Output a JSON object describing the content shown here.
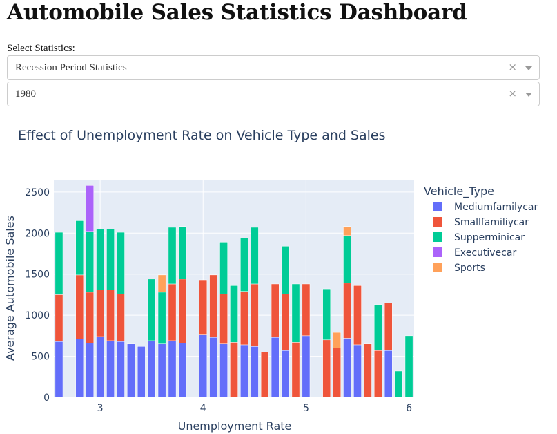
{
  "page": {
    "title": "Automobile Sales Statistics Dashboard",
    "select_label": "Select Statistics:",
    "dropdown_statistics": {
      "value": "Recession Period Statistics",
      "clear_glyph": "×"
    },
    "dropdown_year": {
      "value": "1980",
      "clear_glyph": "×"
    }
  },
  "colors": {
    "plot_background": "#E5ECF6",
    "gridline": "#ffffff",
    "text": "#2a3f5f"
  },
  "chart_data": {
    "type": "bar",
    "barmode": "stack",
    "title": "Effect of Unemployment Rate on Vehicle Type and Sales",
    "xlabel": "Unemployment Rate",
    "ylabel": "Average Automobile Sales",
    "xlim": [
      2.55,
      6.05
    ],
    "ylim": [
      0,
      2650
    ],
    "x_ticks": [
      3,
      4,
      5,
      6
    ],
    "y_ticks": [
      0,
      500,
      1000,
      1500,
      2000,
      2500
    ],
    "bar_width": 0.075,
    "grid": true,
    "legend": {
      "title": "Vehicle_Type",
      "placement": "right"
    },
    "series": [
      {
        "name": "Mediumfamilycar",
        "color": "#636EFA",
        "points": [
          [
            2.6,
            680
          ],
          [
            2.8,
            710
          ],
          [
            2.9,
            660
          ],
          [
            3.0,
            740
          ],
          [
            3.1,
            690
          ],
          [
            3.2,
            680
          ],
          [
            3.3,
            650
          ],
          [
            3.4,
            620
          ],
          [
            3.5,
            690
          ],
          [
            3.6,
            650
          ],
          [
            3.7,
            690
          ],
          [
            3.8,
            660
          ],
          [
            4.0,
            760
          ],
          [
            4.1,
            730
          ],
          [
            4.2,
            650
          ],
          [
            4.4,
            640
          ],
          [
            4.5,
            620
          ],
          [
            4.7,
            730
          ],
          [
            4.8,
            570
          ],
          [
            5.0,
            750
          ],
          [
            5.4,
            720
          ],
          [
            5.5,
            640
          ],
          [
            5.8,
            570
          ]
        ]
      },
      {
        "name": "Smallfamiliycar",
        "color": "#EF553B",
        "points": [
          [
            2.6,
            570
          ],
          [
            2.8,
            780
          ],
          [
            2.9,
            620
          ],
          [
            3.0,
            570
          ],
          [
            3.1,
            620
          ],
          [
            3.2,
            580
          ],
          [
            3.7,
            690
          ],
          [
            3.8,
            780
          ],
          [
            4.0,
            670
          ],
          [
            4.1,
            760
          ],
          [
            4.2,
            610
          ],
          [
            4.3,
            670
          ],
          [
            4.4,
            650
          ],
          [
            4.5,
            760
          ],
          [
            4.6,
            550
          ],
          [
            4.7,
            650
          ],
          [
            4.8,
            690
          ],
          [
            4.9,
            670
          ],
          [
            5.0,
            630
          ],
          [
            5.2,
            700
          ],
          [
            5.3,
            600
          ],
          [
            5.4,
            670
          ],
          [
            5.5,
            720
          ],
          [
            5.6,
            650
          ],
          [
            5.7,
            570
          ],
          [
            5.8,
            580
          ]
        ]
      },
      {
        "name": "Supperminicar",
        "color": "#00CC96",
        "points": [
          [
            2.6,
            760
          ],
          [
            2.8,
            660
          ],
          [
            2.9,
            740
          ],
          [
            3.0,
            740
          ],
          [
            3.1,
            740
          ],
          [
            3.2,
            750
          ],
          [
            3.5,
            750
          ],
          [
            3.6,
            630
          ],
          [
            3.7,
            690
          ],
          [
            3.8,
            640
          ],
          [
            4.2,
            630
          ],
          [
            4.3,
            690
          ],
          [
            4.4,
            650
          ],
          [
            4.5,
            690
          ],
          [
            4.8,
            580
          ],
          [
            4.9,
            710
          ],
          [
            5.2,
            620
          ],
          [
            5.4,
            580
          ],
          [
            5.7,
            560
          ],
          [
            5.9,
            320
          ],
          [
            6.0,
            750
          ]
        ]
      },
      {
        "name": "Executivecar",
        "color": "#AB63FA",
        "points": [
          [
            2.9,
            560
          ]
        ]
      },
      {
        "name": "Sports",
        "color": "#FFA15A",
        "points": [
          [
            3.6,
            210
          ],
          [
            5.3,
            190
          ],
          [
            5.4,
            110
          ]
        ]
      }
    ]
  }
}
